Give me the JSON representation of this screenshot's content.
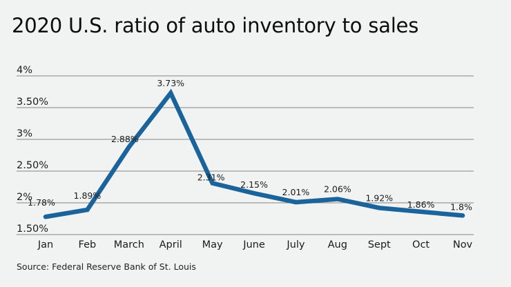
{
  "chart_data": {
    "type": "line",
    "title": "2020 U.S. ratio of auto inventory to sales",
    "xlabel": "",
    "ylabel": "",
    "categories": [
      "Jan",
      "Feb",
      "March",
      "April",
      "May",
      "June",
      "July",
      "Aug",
      "Sept",
      "Oct",
      "Nov"
    ],
    "series": [
      {
        "name": "Inventory to sales ratio",
        "values": [
          1.78,
          1.89,
          2.88,
          3.73,
          2.31,
          2.15,
          2.01,
          2.06,
          1.92,
          1.86,
          1.8
        ],
        "data_labels": [
          "1.78%",
          "1.89%",
          "2.88%",
          "3.73%",
          "2.31%",
          "2.15%",
          "2.01%",
          "2.06%",
          "1.92%",
          "1.86%",
          "1.8%"
        ],
        "color": "#1b639b"
      }
    ],
    "ylim": [
      1.5,
      4
    ],
    "yticks": [
      1.5,
      2,
      2.5,
      3,
      3.5,
      4
    ],
    "ytick_labels": [
      "1.50%",
      "2%",
      "2.50%",
      "3%",
      "3.50%",
      "4%"
    ],
    "grid": true,
    "legend": "none",
    "source": "Source: Federal Reserve Bank of St. Louis"
  },
  "colors": {
    "background": "#f1f2f2",
    "gridline": "#9a9a9a",
    "line": "#1b639b"
  }
}
